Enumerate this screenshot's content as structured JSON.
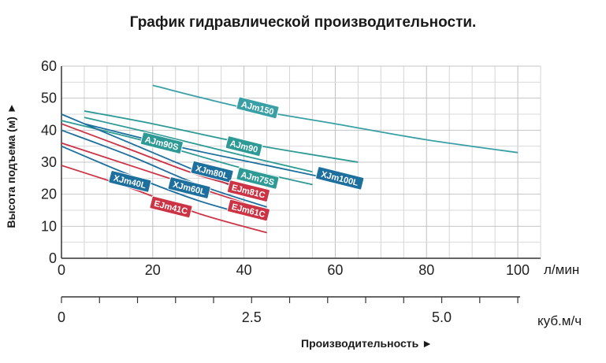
{
  "title": "График гидравлической производительности.",
  "chart_data": {
    "type": "line",
    "ylabel": "Высота подъема (м)",
    "xlabel": "Производительность",
    "x_unit": "л/мин",
    "x2_unit": "куб.м/ч",
    "xlim": [
      0,
      105
    ],
    "ylim": [
      0,
      60
    ],
    "x_ticks": [
      "0",
      "20",
      "40",
      "60",
      "80",
      "100"
    ],
    "y_ticks": [
      "0",
      "10",
      "20",
      "30",
      "40",
      "50",
      "60"
    ],
    "x2_ticks": [
      "0",
      "2.5",
      "5.0"
    ],
    "grid": true,
    "series": [
      {
        "name": "AJm150",
        "color": "#3aa0a6",
        "label_at": [
          43,
          47
        ],
        "points": [
          [
            20,
            54
          ],
          [
            40,
            47
          ],
          [
            60,
            42
          ],
          [
            80,
            37
          ],
          [
            100,
            33
          ]
        ]
      },
      {
        "name": "AJm90",
        "color": "#2e9a96",
        "label_at": [
          40,
          35
        ],
        "points": [
          [
            5,
            46
          ],
          [
            20,
            42
          ],
          [
            40,
            36
          ],
          [
            65,
            30
          ]
        ]
      },
      {
        "name": "AJm90S",
        "color": "#2e9a96",
        "label_at": [
          22,
          36
        ],
        "points": [
          [
            5,
            44
          ],
          [
            20,
            39
          ],
          [
            40,
            32
          ],
          [
            55,
            27
          ]
        ]
      },
      {
        "name": "AJm75S",
        "color": "#2e9a96",
        "label_at": [
          43,
          25
        ],
        "points": [
          [
            0,
            43
          ],
          [
            20,
            36
          ],
          [
            40,
            28
          ],
          [
            55,
            23
          ]
        ]
      },
      {
        "name": "XJm100L",
        "color": "#1d6f9e",
        "label_at": [
          61,
          25
        ],
        "points": [
          [
            5,
            42
          ],
          [
            25,
            35
          ],
          [
            45,
            29
          ],
          [
            65,
            23
          ]
        ]
      },
      {
        "name": "XJm80L",
        "color": "#1d6f9e",
        "label_at": [
          33,
          27
        ],
        "points": [
          [
            0,
            45
          ],
          [
            15,
            36
          ],
          [
            30,
            27
          ],
          [
            45,
            18
          ]
        ]
      },
      {
        "name": "XJm60L",
        "color": "#1d6f9e",
        "label_at": [
          28,
          22
        ],
        "points": [
          [
            0,
            40
          ],
          [
            15,
            32
          ],
          [
            30,
            23
          ],
          [
            45,
            16
          ]
        ]
      },
      {
        "name": "XJm40L",
        "color": "#1d6f9e",
        "label_at": [
          15,
          24
        ],
        "points": [
          [
            0,
            35
          ],
          [
            15,
            26
          ],
          [
            30,
            18
          ],
          [
            45,
            12
          ]
        ]
      },
      {
        "name": "EJm81C",
        "color": "#cc3344",
        "label_at": [
          41,
          21
        ],
        "points": [
          [
            0,
            42
          ],
          [
            15,
            34
          ],
          [
            30,
            26
          ],
          [
            45,
            20
          ]
        ]
      },
      {
        "name": "EJm61C",
        "color": "#cc3344",
        "label_at": [
          41,
          15
        ],
        "points": [
          [
            0,
            36
          ],
          [
            15,
            29
          ],
          [
            30,
            22
          ],
          [
            45,
            15
          ]
        ]
      },
      {
        "name": "EJm41C",
        "color": "#cc3344",
        "label_at": [
          24,
          16
        ],
        "points": [
          [
            0,
            29
          ],
          [
            15,
            22
          ],
          [
            30,
            14
          ],
          [
            45,
            8
          ]
        ]
      }
    ]
  }
}
